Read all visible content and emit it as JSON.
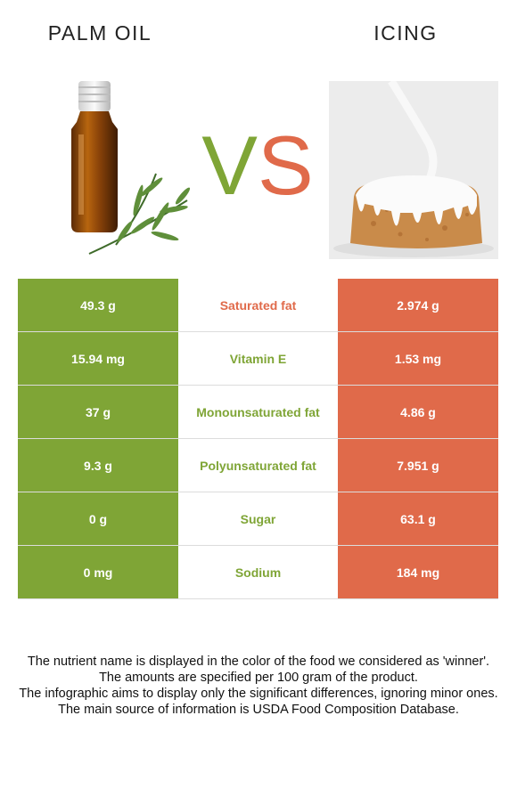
{
  "left_food": {
    "name": "PALM OIL",
    "color": "#7fa536"
  },
  "right_food": {
    "name": "ICING",
    "color": "#e06a4a"
  },
  "vs": {
    "v": "V",
    "s": "S"
  },
  "rows": [
    {
      "nutrient": "Saturated fat",
      "left": "49.3 g",
      "right": "2.974 g",
      "winner": "right"
    },
    {
      "nutrient": "Vitamin E",
      "left": "15.94 mg",
      "right": "1.53 mg",
      "winner": "left"
    },
    {
      "nutrient": "Monounsaturated fat",
      "left": "37 g",
      "right": "4.86 g",
      "winner": "left"
    },
    {
      "nutrient": "Polyunsaturated fat",
      "left": "9.3 g",
      "right": "7.951 g",
      "winner": "left"
    },
    {
      "nutrient": "Sugar",
      "left": "0 g",
      "right": "63.1 g",
      "winner": "left"
    },
    {
      "nutrient": "Sodium",
      "left": "0 mg",
      "right": "184 mg",
      "winner": "left"
    }
  ],
  "footer": [
    "The nutrient name is displayed in the color of the food we considered as 'winner'.",
    "The amounts are specified per 100 gram of the product.",
    "The infographic aims to display only the significant differences, ignoring minor ones.",
    "The main source of information is USDA Food Composition Database."
  ]
}
